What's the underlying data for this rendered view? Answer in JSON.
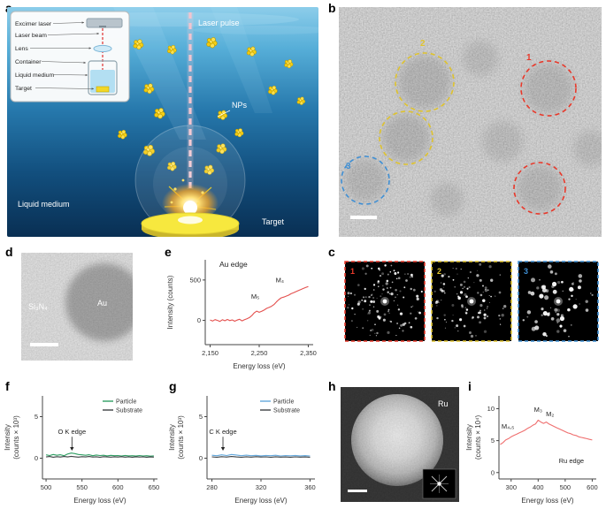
{
  "figure": {
    "panel_labels": {
      "a": "a",
      "b": "b",
      "c": "c",
      "d": "d",
      "e": "e",
      "f": "f",
      "g": "g",
      "h": "h",
      "i": "i"
    }
  },
  "panel_a": {
    "inset": {
      "excimer_laser": "Excimer laser",
      "laser_beam": "Laser beam",
      "lens": "Lens",
      "container": "Container",
      "liquid_medium": "Liquid medium",
      "target": "Target"
    },
    "labels": {
      "laser_pulse": "Laser pulse",
      "nps": "NPs",
      "liquid_medium": "Liquid medium",
      "target": "Target"
    }
  },
  "panel_b": {
    "region_labels": [
      "1",
      "2",
      "3"
    ]
  },
  "panel_c": {
    "fft_labels": [
      "1",
      "2",
      "3"
    ]
  },
  "panel_d": {
    "substrate": "Si₃N₄",
    "particle": "Au"
  },
  "panel_h": {
    "particle": "Ru"
  },
  "colors": {
    "red": "#e8392b",
    "yellow": "#dfc32e",
    "blue": "#3f8fd4",
    "curve_red": "#e4504e",
    "curve_pink": "#ef6f6f",
    "particle_green": "#2f9e63",
    "particle_blue": "#63a8dc",
    "substrate_gray": "#3d4043"
  },
  "chart_data": [
    {
      "panel": "e",
      "type": "line",
      "title": "Au edge",
      "xlabel": "Energy loss (eV)",
      "ylabel": "Intensity (counts)",
      "xlim": [
        2140,
        2360
      ],
      "ylim": [
        -300,
        750
      ],
      "xticks": [
        2150,
        2250,
        2350
      ],
      "xtick_labels": [
        "2,150",
        "2,250",
        "2,350"
      ],
      "yticks": [
        0,
        500
      ],
      "margins": {
        "l": 46,
        "r": 8,
        "t": 10,
        "b": 30
      },
      "series": [
        {
          "name": "Au edge",
          "color": "#e4504e",
          "x": [
            2150,
            2155,
            2160,
            2165,
            2170,
            2175,
            2180,
            2185,
            2190,
            2195,
            2200,
            2205,
            2210,
            2215,
            2220,
            2225,
            2230,
            2235,
            2240,
            2245,
            2250,
            2255,
            2260,
            2265,
            2270,
            2275,
            2280,
            2285,
            2290,
            2295,
            2300,
            2305,
            2310,
            2315,
            2320,
            2325,
            2330,
            2335,
            2340,
            2345,
            2350
          ],
          "y": [
            5,
            -8,
            10,
            0,
            -12,
            8,
            -5,
            12,
            -3,
            6,
            -10,
            4,
            14,
            -6,
            8,
            20,
            35,
            60,
            95,
            115,
            100,
            112,
            128,
            148,
            160,
            175,
            196,
            228,
            258,
            280,
            288,
            300,
            312,
            330,
            342,
            356,
            370,
            382,
            396,
            408,
            420
          ]
        }
      ],
      "annotations": [
        {
          "text": "M₅",
          "x": 2242,
          "y": 270
        },
        {
          "text": "M₄",
          "x": 2292,
          "y": 470
        }
      ]
    },
    {
      "panel": "f",
      "type": "line",
      "xlabel": "Energy loss (eV)",
      "ylabel": "Intensity\n(counts × 10³)",
      "xlim": [
        495,
        655
      ],
      "ylim": [
        -2.5,
        7.5
      ],
      "xticks": [
        500,
        550,
        600,
        650
      ],
      "yticks": [
        0,
        5
      ],
      "legend": true,
      "margins": {
        "l": 46,
        "r": 6,
        "t": 10,
        "b": 30
      },
      "series": [
        {
          "name": "Particle",
          "color": "#2f9e63",
          "x": [
            500,
            505,
            510,
            515,
            520,
            525,
            530,
            535,
            540,
            545,
            550,
            555,
            560,
            565,
            570,
            575,
            580,
            585,
            590,
            595,
            600,
            605,
            610,
            615,
            620,
            625,
            630,
            635,
            640,
            645,
            650
          ],
          "y": [
            0.4,
            0.32,
            0.45,
            0.35,
            0.42,
            0.3,
            0.5,
            0.62,
            0.55,
            0.45,
            0.4,
            0.35,
            0.42,
            0.3,
            0.38,
            0.32,
            0.35,
            0.28,
            0.34,
            0.3,
            0.32,
            0.27,
            0.33,
            0.28,
            0.3,
            0.26,
            0.32,
            0.27,
            0.3,
            0.25,
            0.28
          ]
        },
        {
          "name": "Substrate",
          "color": "#3d4043",
          "x": [
            500,
            505,
            510,
            515,
            520,
            525,
            530,
            535,
            540,
            545,
            550,
            555,
            560,
            565,
            570,
            575,
            580,
            585,
            590,
            595,
            600,
            605,
            610,
            615,
            620,
            625,
            630,
            635,
            640,
            645,
            650
          ],
          "y": [
            0.15,
            0.2,
            0.12,
            0.18,
            0.14,
            0.2,
            0.15,
            0.22,
            0.17,
            0.13,
            0.18,
            0.15,
            0.2,
            0.14,
            0.17,
            0.12,
            0.18,
            0.15,
            0.13,
            0.17,
            0.14,
            0.18,
            0.13,
            0.16,
            0.12,
            0.17,
            0.14,
            0.16,
            0.12,
            0.15,
            0.13
          ]
        }
      ],
      "annotations": [
        {
          "text": "O K edge",
          "x": 536,
          "y": 2.9,
          "arrow_to": 0.9
        }
      ]
    },
    {
      "panel": "g",
      "type": "line",
      "xlabel": "Energy loss (eV)",
      "ylabel": "Intensity\n(counts × 10³)",
      "xlim": [
        276,
        364
      ],
      "ylim": [
        -2.5,
        7.5
      ],
      "xticks": [
        280,
        320,
        360
      ],
      "yticks": [
        0,
        5
      ],
      "legend": true,
      "margins": {
        "l": 46,
        "r": 6,
        "t": 10,
        "b": 30
      },
      "series": [
        {
          "name": "Particle",
          "color": "#63a8dc",
          "x": [
            280,
            284,
            288,
            292,
            296,
            300,
            304,
            308,
            312,
            316,
            320,
            324,
            328,
            332,
            336,
            340,
            344,
            348,
            352,
            356,
            360
          ],
          "y": [
            0.35,
            0.3,
            0.4,
            0.32,
            0.45,
            0.38,
            0.3,
            0.36,
            0.3,
            0.34,
            0.28,
            0.33,
            0.3,
            0.35,
            0.27,
            0.32,
            0.29,
            0.33,
            0.28,
            0.31,
            0.27
          ]
        },
        {
          "name": "Substrate",
          "color": "#3d4043",
          "x": [
            280,
            284,
            288,
            292,
            296,
            300,
            304,
            308,
            312,
            316,
            320,
            324,
            328,
            332,
            336,
            340,
            344,
            348,
            352,
            356,
            360
          ],
          "y": [
            0.16,
            0.12,
            0.18,
            0.14,
            0.2,
            0.15,
            0.12,
            0.17,
            0.13,
            0.18,
            0.14,
            0.16,
            0.12,
            0.17,
            0.13,
            0.15,
            0.12,
            0.16,
            0.13,
            0.15,
            0.12
          ]
        }
      ],
      "annotations": [
        {
          "text": "C K edge",
          "x": 289,
          "y": 2.9,
          "arrow_to": 0.9
        }
      ]
    },
    {
      "panel": "i",
      "type": "line",
      "xlabel": "Energy loss (eV)",
      "ylabel": "Intensity\n(counts × 10⁴)",
      "xlim": [
        255,
        615
      ],
      "ylim": [
        -1,
        12
      ],
      "xticks": [
        300,
        400,
        500,
        600
      ],
      "yticks": [
        0,
        5,
        10
      ],
      "margins": {
        "l": 40,
        "r": 9,
        "t": 10,
        "b": 30
      },
      "series": [
        {
          "name": "Ru edge",
          "color": "#ef6f6f",
          "x": [
            260,
            270,
            280,
            290,
            300,
            310,
            320,
            330,
            340,
            350,
            360,
            370,
            380,
            390,
            400,
            410,
            420,
            430,
            440,
            450,
            460,
            470,
            480,
            490,
            500,
            510,
            520,
            530,
            540,
            550,
            560,
            570,
            580,
            590,
            600
          ],
          "y": [
            4.4,
            4.7,
            5.1,
            5.3,
            5.6,
            5.8,
            6.0,
            6.2,
            6.4,
            6.6,
            6.9,
            7.1,
            7.4,
            7.6,
            8.2,
            7.9,
            7.7,
            7.9,
            7.6,
            7.4,
            7.2,
            7.0,
            6.8,
            6.6,
            6.4,
            6.2,
            6.1,
            5.9,
            5.8,
            5.6,
            5.5,
            5.4,
            5.3,
            5.2,
            5.1
          ]
        }
      ],
      "annotations": [
        {
          "text": "M₄,₅",
          "x": 288,
          "y": 6.9
        },
        {
          "text": "M₃",
          "x": 400,
          "y": 9.5
        },
        {
          "text": "M₂",
          "x": 444,
          "y": 8.8
        },
        {
          "text": "Ru edge",
          "x": 523,
          "y": 1.5
        }
      ]
    }
  ]
}
